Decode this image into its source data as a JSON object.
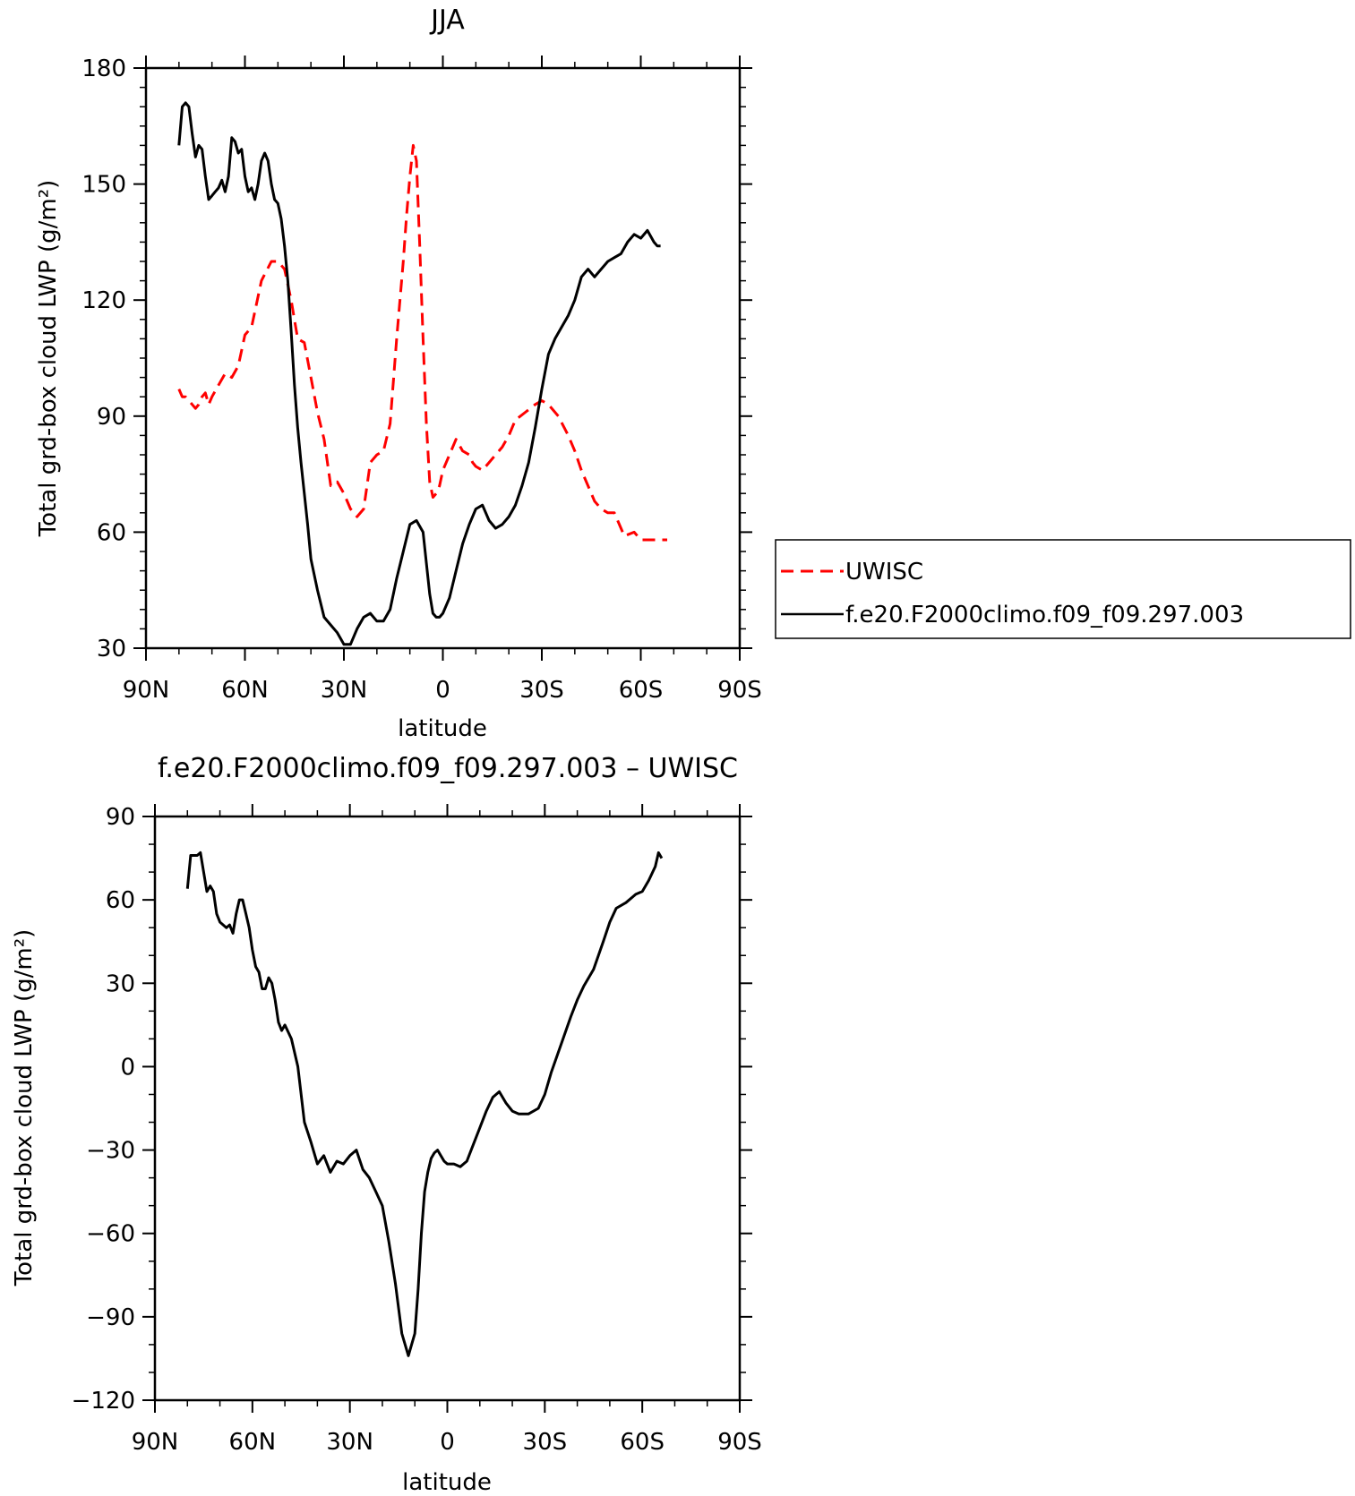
{
  "chart_data": [
    {
      "type": "line",
      "title": "JJA",
      "xlabel": "latitude",
      "ylabel": "Total grd-box cloud LWP (g/m²)",
      "xlim": [
        90,
        -90
      ],
      "ylim": [
        30,
        180
      ],
      "x_ticks": [
        90,
        60,
        30,
        0,
        -30,
        -60,
        -90
      ],
      "x_tick_labels": [
        "90N",
        "60N",
        "30N",
        "0",
        "30S",
        "60S",
        "90S"
      ],
      "y_ticks": [
        30,
        60,
        90,
        120,
        150,
        180
      ],
      "y_tick_labels": [
        "30",
        "60",
        "90",
        "120",
        "150",
        "180"
      ],
      "grid": false,
      "legend": {
        "placement": "right",
        "entries": [
          "UWISC",
          "f.e20.F2000climo.f09_f09.297.003"
        ]
      },
      "series": [
        {
          "name": "UWISC",
          "color": "#ff0000",
          "dash": "dashed",
          "x": [
            80,
            79,
            78,
            77,
            76,
            75,
            74,
            73,
            72,
            71,
            70,
            68,
            66,
            64,
            62,
            60,
            58,
            55,
            52,
            50,
            48,
            46,
            44,
            42,
            40,
            38,
            36,
            34,
            32,
            30,
            28,
            26,
            24,
            22,
            20,
            18,
            16,
            14,
            12,
            11,
            10,
            9,
            8,
            7,
            6,
            5,
            4,
            3,
            2,
            1,
            0,
            -2,
            -4,
            -6,
            -8,
            -9,
            -10,
            -12,
            -14,
            -16,
            -18,
            -20,
            -22,
            -25,
            -28,
            -30,
            -32,
            -35,
            -38,
            -40,
            -42,
            -44,
            -46,
            -48,
            -50,
            -52,
            -55,
            -58,
            -60,
            -63,
            -65,
            -66,
            -67,
            -68
          ],
          "y": [
            97,
            95,
            95,
            94,
            93,
            92,
            93,
            95,
            96,
            93,
            95,
            98,
            101,
            100,
            103,
            111,
            113,
            125,
            130,
            130,
            128,
            120,
            110,
            109,
            100,
            91,
            84,
            72,
            73,
            70,
            66,
            64,
            66,
            78,
            80,
            81,
            88,
            110,
            130,
            142,
            152,
            160,
            156,
            134,
            110,
            88,
            73,
            69,
            70,
            72,
            76,
            80,
            84,
            81,
            80,
            78,
            77,
            76,
            78,
            80,
            82,
            85,
            89,
            91,
            93,
            94,
            93,
            90,
            85,
            81,
            76,
            72,
            68,
            66,
            65,
            65,
            59,
            60,
            58,
            58,
            58,
            58,
            58,
            58
          ]
        },
        {
          "name": "f.e20.F2000climo.f09_f09.297.003",
          "color": "#000000",
          "dash": "solid",
          "x": [
            80,
            79,
            78,
            77,
            76,
            75,
            74,
            73,
            72,
            71,
            70,
            69,
            68,
            67,
            66,
            65,
            64,
            63,
            62,
            61,
            60,
            59,
            58,
            57,
            56,
            55,
            54,
            53,
            52,
            51,
            50,
            49,
            48,
            47,
            46,
            45,
            44,
            43,
            42,
            41,
            40,
            38,
            36,
            34,
            32,
            30,
            28,
            26,
            24,
            22,
            20,
            18,
            16,
            14,
            12,
            10,
            8,
            6,
            5,
            4,
            3,
            2,
            1,
            0,
            -2,
            -4,
            -6,
            -8,
            -10,
            -12,
            -14,
            -16,
            -18,
            -20,
            -22,
            -24,
            -26,
            -28,
            -30,
            -32,
            -34,
            -36,
            -38,
            -40,
            -42,
            -44,
            -46,
            -48,
            -50,
            -52,
            -54,
            -56,
            -58,
            -60,
            -62,
            -64,
            -65,
            -66
          ],
          "y": [
            160,
            170,
            171,
            170,
            163,
            157,
            160,
            159,
            152,
            146,
            147,
            148,
            149,
            151,
            148,
            152,
            162,
            161,
            158,
            159,
            152,
            148,
            149,
            146,
            150,
            156,
            158,
            156,
            150,
            146,
            145,
            141,
            134,
            125,
            112,
            98,
            87,
            78,
            70,
            62,
            53,
            45,
            38,
            36,
            34,
            31,
            31,
            35,
            38,
            39,
            37,
            37,
            40,
            48,
            55,
            62,
            63,
            60,
            52,
            44,
            39,
            38,
            38,
            39,
            43,
            50,
            57,
            62,
            66,
            67,
            63,
            61,
            62,
            64,
            67,
            72,
            78,
            87,
            97,
            106,
            110,
            113,
            116,
            120,
            126,
            128,
            126,
            128,
            130,
            131,
            132,
            135,
            137,
            136,
            138,
            135,
            134,
            134
          ]
        }
      ]
    },
    {
      "type": "line",
      "title": "f.e20.F2000climo.f09_f09.297.003 – UWISC",
      "xlabel": "latitude",
      "ylabel": "Total grd-box cloud LWP (g/m²)",
      "xlim": [
        90,
        -90
      ],
      "ylim": [
        -120,
        90
      ],
      "x_ticks": [
        90,
        60,
        30,
        0,
        -30,
        -60,
        -90
      ],
      "x_tick_labels": [
        "90N",
        "60N",
        "30N",
        "0",
        "30S",
        "60S",
        "90S"
      ],
      "y_ticks": [
        90,
        60,
        30,
        0,
        -30,
        -60,
        -90,
        -120
      ],
      "y_tick_labels": [
        "90",
        "60",
        "30",
        "0",
        "−30",
        "−60",
        "−90",
        "−120"
      ],
      "grid": false,
      "series": [
        {
          "color": "#000000",
          "dash": "solid",
          "x": [
            80,
            79,
            78,
            77,
            76,
            75,
            74,
            73,
            72,
            71,
            70,
            68,
            67,
            66,
            65,
            64,
            63,
            62,
            61,
            60,
            59,
            58,
            57,
            56,
            55,
            54,
            53,
            52,
            51,
            50,
            48,
            46,
            44,
            42,
            40,
            38,
            36,
            34,
            32,
            30,
            28,
            26,
            24,
            22,
            20,
            18,
            16,
            14,
            12,
            10,
            9,
            8,
            7,
            6,
            5,
            4,
            3,
            2,
            1,
            0,
            -2,
            -4,
            -6,
            -8,
            -10,
            -12,
            -14,
            -16,
            -18,
            -20,
            -22,
            -25,
            -28,
            -30,
            -32,
            -35,
            -38,
            -40,
            -42,
            -45,
            -48,
            -50,
            -52,
            -55,
            -58,
            -60,
            -62,
            -64,
            -65,
            -66
          ],
          "y": [
            64,
            76,
            76,
            76,
            77,
            70,
            63,
            65,
            63,
            55,
            52,
            50,
            51,
            48,
            55,
            60,
            60,
            55,
            50,
            42,
            36,
            34,
            28,
            28,
            32,
            30,
            24,
            16,
            13,
            15,
            10,
            0,
            -20,
            -27,
            -35,
            -32,
            -38,
            -34,
            -35,
            -32,
            -30,
            -37,
            -40,
            -45,
            -50,
            -63,
            -78,
            -96,
            -104,
            -96,
            -80,
            -60,
            -45,
            -38,
            -33,
            -31,
            -30,
            -32,
            -34,
            -35,
            -35,
            -36,
            -34,
            -28,
            -22,
            -16,
            -11,
            -9,
            -13,
            -16,
            -17,
            -17,
            -15,
            -10,
            -2,
            8,
            18,
            24,
            29,
            35,
            45,
            52,
            57,
            59,
            62,
            63,
            67,
            72,
            77,
            75
          ]
        }
      ]
    }
  ]
}
